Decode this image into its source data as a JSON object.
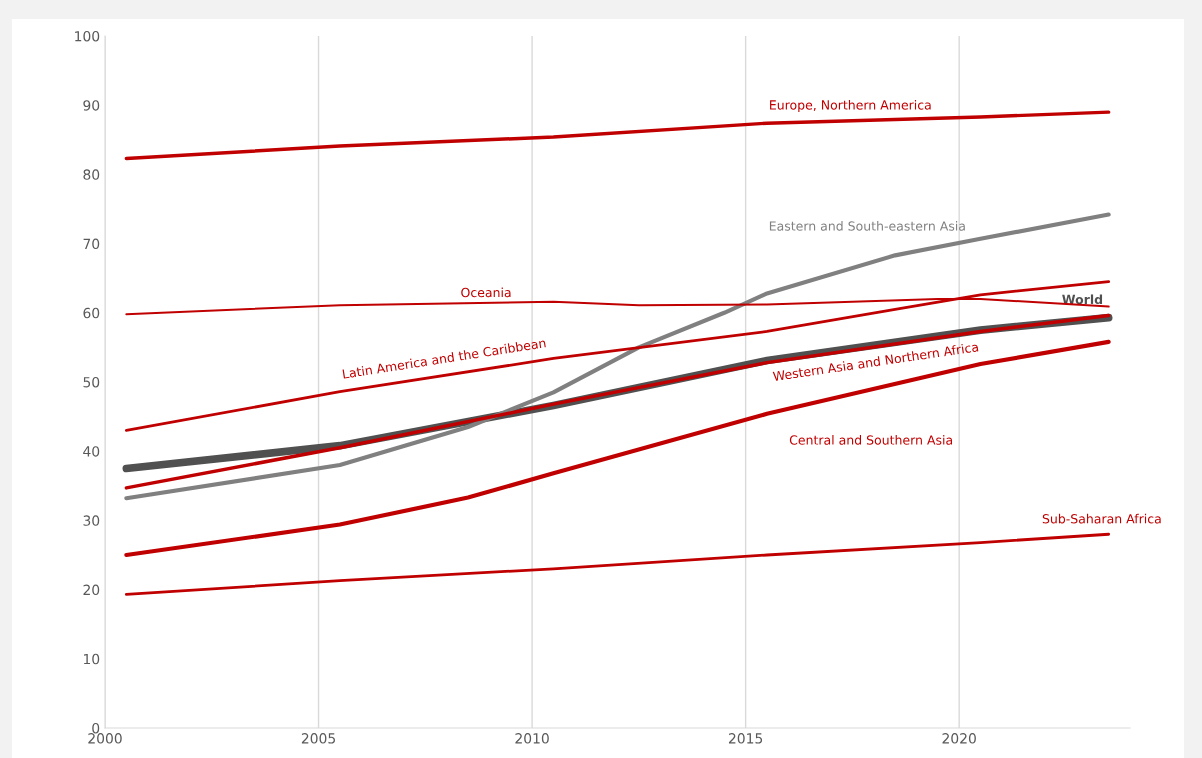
{
  "chart_data": {
    "type": "line",
    "series": [
      {
        "name": "Europe, Northern America",
        "color": "#c00000",
        "x": [
          2000,
          2005,
          2010,
          2015,
          2020,
          2023
        ],
        "values": [
          82.3,
          84.1,
          85.4,
          87.4,
          88.3,
          89
        ]
      },
      {
        "name": "Eastern and South-eastern Asia",
        "color": "#808080",
        "x": [
          2000,
          2005,
          2008,
          2010,
          2012,
          2014,
          2015,
          2018,
          2020,
          2023
        ],
        "values": [
          33.2,
          38,
          43.5,
          48.5,
          55,
          60,
          62.8,
          68.3,
          70.7,
          74.2
        ]
      },
      {
        "name": "Latin America and the Caribbean",
        "color": "#c00000",
        "x": [
          2000,
          2005,
          2010,
          2015,
          2018,
          2020,
          2023
        ],
        "values": [
          43,
          48.6,
          53.4,
          57.3,
          60.5,
          62.6,
          64.5
        ]
      },
      {
        "name": "Oceania",
        "color": "#c00000",
        "x": [
          2000,
          2005,
          2010,
          2012,
          2015,
          2019,
          2020,
          2023
        ],
        "values": [
          59.8,
          61.1,
          61.6,
          61.1,
          61.2,
          62,
          62,
          60.9
        ]
      },
      {
        "name": "Western Asia and Northern Africa",
        "color": "#c00000",
        "x": [
          2000,
          2005,
          2010,
          2015,
          2020,
          2023
        ],
        "values": [
          34.7,
          40.5,
          46.8,
          52.8,
          57.3,
          59.6
        ]
      },
      {
        "name": "Central and Southern Asia",
        "color": "#c00000",
        "x": [
          2000,
          2005,
          2008,
          2010,
          2015,
          2020,
          2023
        ],
        "values": [
          25,
          29.4,
          33.3,
          36.8,
          45.4,
          52.6,
          55.8
        ]
      },
      {
        "name": "World",
        "color": "#505050",
        "x": [
          2000,
          2005,
          2010,
          2015,
          2020,
          2023
        ],
        "values": [
          37.5,
          40.8,
          46.6,
          53.1,
          57.5,
          59.3
        ]
      },
      {
        "name": "Sub-Saharan Africa",
        "color": "#c00000",
        "x": [
          2000,
          2005,
          2010,
          2015,
          2020,
          2023
        ],
        "values": [
          19.3,
          21.3,
          23,
          25,
          26.8,
          28
        ]
      }
    ],
    "xlim": [
      1999.5,
      2023.5
    ],
    "xticks": [
      {
        "value": 1999.5,
        "label": "2000"
      },
      {
        "value": 2004.5,
        "label": "2005"
      },
      {
        "value": 2009.5,
        "label": "2010"
      },
      {
        "value": 2014.5,
        "label": "2015"
      },
      {
        "value": 2019.5,
        "label": "2020"
      }
    ],
    "ylim": [
      0,
      100
    ],
    "yticks": [
      0,
      10,
      20,
      30,
      40,
      50,
      60,
      70,
      80,
      90,
      100
    ],
    "grid": "x",
    "line_style": "solid"
  }
}
